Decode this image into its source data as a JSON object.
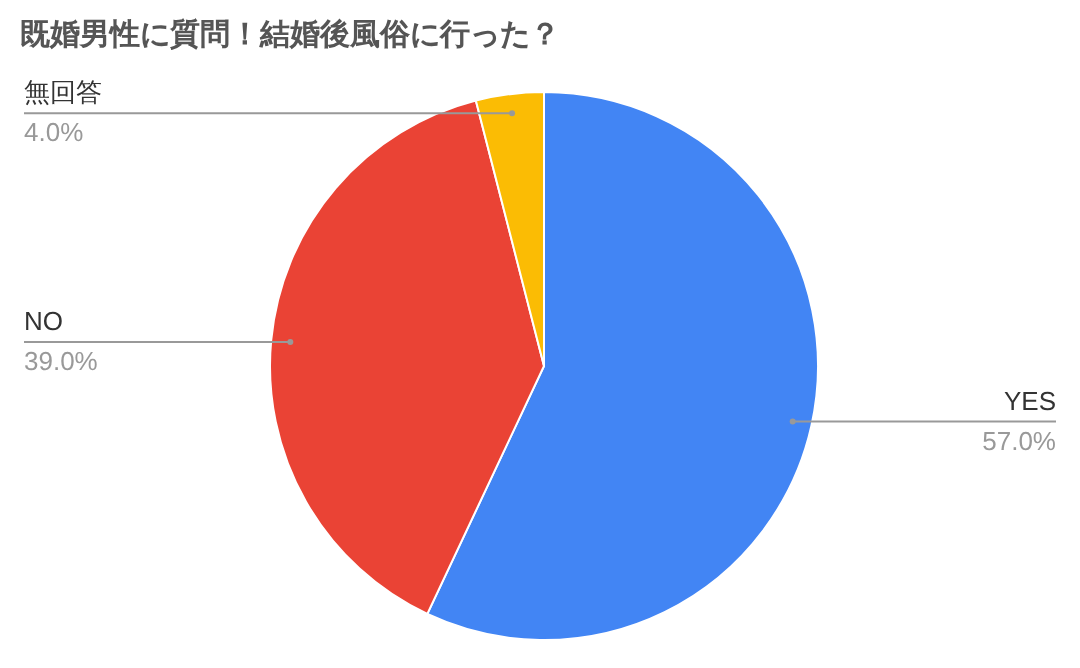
{
  "chart_data": {
    "type": "pie",
    "title": "既婚男性に質問！結婚後風俗に行った？",
    "categories": [
      "YES",
      "NO",
      "無回答"
    ],
    "values": [
      57,
      39,
      4
    ],
    "colors": [
      "#4285f4",
      "#ea4335",
      "#fbbc04"
    ],
    "value_labels": [
      "57.0%",
      "39.0%",
      "4.0%"
    ]
  }
}
